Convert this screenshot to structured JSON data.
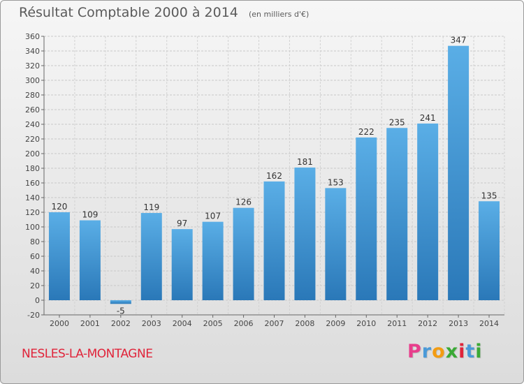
{
  "chart_data": {
    "type": "bar",
    "title": "Résultat Comptable 2000 à 2014",
    "subtitle": "(en milliers d'€)",
    "categories": [
      "2000",
      "2001",
      "2002",
      "2003",
      "2004",
      "2005",
      "2006",
      "2007",
      "2008",
      "2009",
      "2010",
      "2011",
      "2012",
      "2013",
      "2014"
    ],
    "values": [
      120,
      109,
      -5,
      119,
      97,
      107,
      126,
      162,
      181,
      153,
      222,
      235,
      241,
      347,
      135
    ],
    "ylim": [
      -20,
      360
    ],
    "yticks": [
      -20,
      0,
      20,
      40,
      60,
      80,
      100,
      120,
      140,
      160,
      180,
      200,
      220,
      240,
      260,
      280,
      300,
      320,
      340,
      360
    ],
    "grid": true,
    "bar_color": "#4a9ad8"
  },
  "footer": {
    "commune": "NESLES-LA-MONTAGNE",
    "brand": [
      "P",
      "r",
      "o",
      "x",
      "i",
      "t",
      "i"
    ],
    "brand_colors": [
      "#e83e8c",
      "#4a9ad8",
      "#f39c12",
      "#3aa935",
      "#e0243a",
      "#4a9ad8",
      "#3aa935"
    ]
  }
}
